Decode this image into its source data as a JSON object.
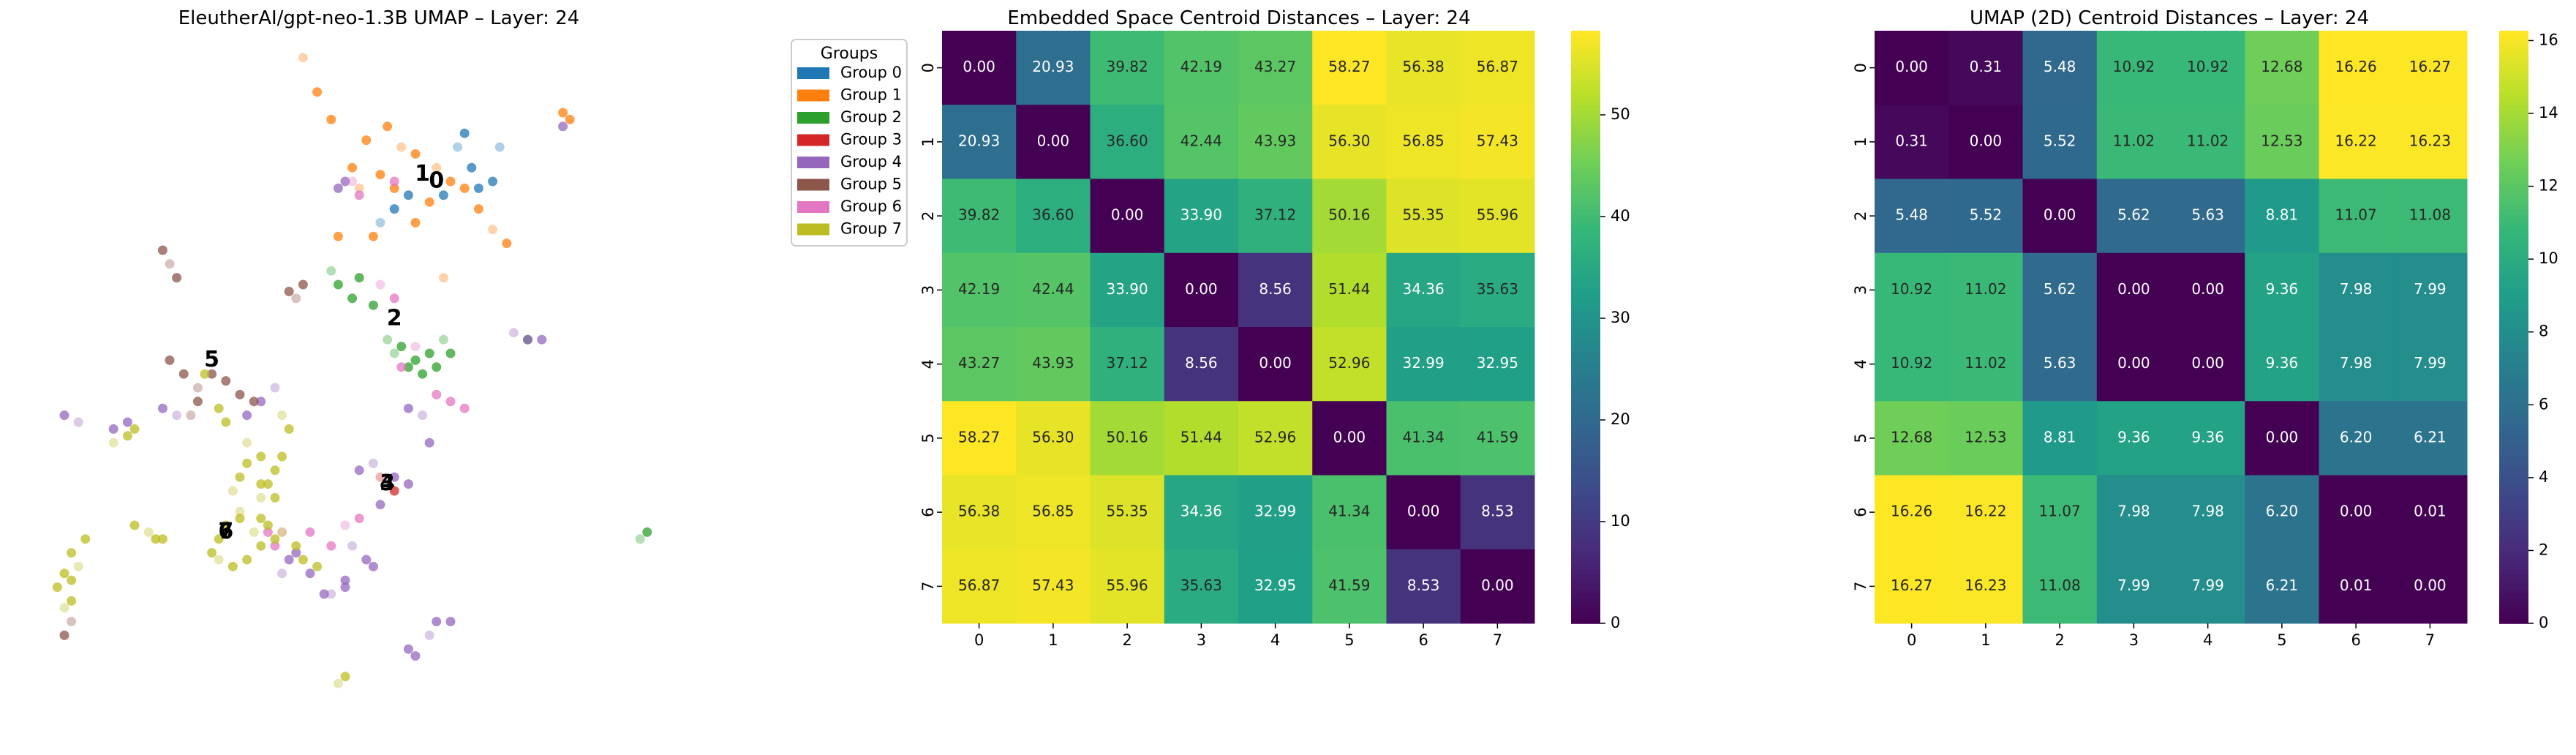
{
  "chart_data": [
    {
      "type": "scatter",
      "title": "EleutherAI/gpt-neo-1.3B UMAP – Layer: 24",
      "xlabel": "",
      "ylabel": "",
      "axes_visible": false,
      "legend": {
        "title": "Groups",
        "placement": "outside-right",
        "entries": [
          {
            "label": "Group 0",
            "color": "#1f77b4"
          },
          {
            "label": "Group 1",
            "color": "#ff7f0e"
          },
          {
            "label": "Group 2",
            "color": "#2ca02c"
          },
          {
            "label": "Group 3",
            "color": "#d62728"
          },
          {
            "label": "Group 4",
            "color": "#9467bd"
          },
          {
            "label": "Group 5",
            "color": "#8c564b"
          },
          {
            "label": "Group 6",
            "color": "#e377c2"
          },
          {
            "label": "Group 7",
            "color": "#bcbd22"
          }
        ]
      },
      "centroid_labels": [
        {
          "label": "1",
          "x": 0.56,
          "y": 0.81
        },
        {
          "label": "0",
          "x": 0.58,
          "y": 0.8
        },
        {
          "label": "2",
          "x": 0.52,
          "y": 0.6
        },
        {
          "label": "5",
          "x": 0.26,
          "y": 0.54
        },
        {
          "label": "3",
          "x": 0.51,
          "y": 0.36
        },
        {
          "label": "4",
          "x": 0.51,
          "y": 0.36
        },
        {
          "label": "6",
          "x": 0.28,
          "y": 0.29
        },
        {
          "label": "7",
          "x": 0.28,
          "y": 0.29
        }
      ],
      "clusters": [
        {
          "group": 0,
          "points": [
            [
              0.61,
              0.85
            ],
            [
              0.62,
              0.87
            ],
            [
              0.63,
              0.82
            ],
            [
              0.64,
              0.79
            ],
            [
              0.5,
              0.74
            ],
            [
              0.52,
              0.76
            ],
            [
              0.59,
              0.78
            ],
            [
              0.66,
              0.8
            ],
            [
              0.67,
              0.85
            ],
            [
              0.54,
              0.78
            ]
          ]
        },
        {
          "group": 1,
          "points": [
            [
              0.39,
              0.98
            ],
            [
              0.41,
              0.93
            ],
            [
              0.43,
              0.89
            ],
            [
              0.46,
              0.82
            ],
            [
              0.47,
              0.79
            ],
            [
              0.5,
              0.81
            ],
            [
              0.52,
              0.79
            ],
            [
              0.55,
              0.84
            ],
            [
              0.58,
              0.82
            ],
            [
              0.6,
              0.8
            ],
            [
              0.62,
              0.79
            ],
            [
              0.64,
              0.76
            ],
            [
              0.66,
              0.73
            ],
            [
              0.68,
              0.71
            ],
            [
              0.48,
              0.86
            ],
            [
              0.51,
              0.88
            ],
            [
              0.53,
              0.85
            ],
            [
              0.57,
              0.77
            ],
            [
              0.55,
              0.74
            ],
            [
              0.49,
              0.72
            ],
            [
              0.59,
              0.66
            ],
            [
              0.76,
              0.9
            ],
            [
              0.77,
              0.89
            ],
            [
              0.44,
              0.72
            ]
          ]
        },
        {
          "group": 2,
          "points": [
            [
              0.43,
              0.67
            ],
            [
              0.44,
              0.65
            ],
            [
              0.46,
              0.63
            ],
            [
              0.49,
              0.62
            ],
            [
              0.51,
              0.57
            ],
            [
              0.53,
              0.56
            ],
            [
              0.55,
              0.54
            ],
            [
              0.57,
              0.55
            ],
            [
              0.59,
              0.57
            ],
            [
              0.6,
              0.55
            ],
            [
              0.56,
              0.52
            ],
            [
              0.54,
              0.53
            ],
            [
              0.52,
              0.55
            ],
            [
              0.58,
              0.53
            ],
            [
              0.47,
              0.66
            ],
            [
              0.71,
              0.57
            ],
            [
              0.87,
              0.28
            ],
            [
              0.88,
              0.29
            ]
          ]
        },
        {
          "group": 3,
          "points": [
            [
              0.5,
              0.37
            ],
            [
              0.52,
              0.35
            ]
          ]
        },
        {
          "group": 4,
          "points": [
            [
              0.69,
              0.58
            ],
            [
              0.71,
              0.57
            ],
            [
              0.73,
              0.57
            ],
            [
              0.47,
              0.38
            ],
            [
              0.49,
              0.39
            ],
            [
              0.52,
              0.37
            ],
            [
              0.54,
              0.36
            ],
            [
              0.5,
              0.33
            ],
            [
              0.46,
              0.27
            ],
            [
              0.48,
              0.25
            ],
            [
              0.49,
              0.24
            ],
            [
              0.45,
              0.22
            ],
            [
              0.43,
              0.2
            ],
            [
              0.42,
              0.2
            ],
            [
              0.4,
              0.23
            ],
            [
              0.38,
              0.26
            ],
            [
              0.36,
              0.23
            ],
            [
              0.37,
              0.25
            ],
            [
              0.45,
              0.21
            ],
            [
              0.55,
              0.11
            ],
            [
              0.57,
              0.14
            ],
            [
              0.58,
              0.16
            ],
            [
              0.6,
              0.16
            ],
            [
              0.54,
              0.12
            ],
            [
              0.35,
              0.5
            ],
            [
              0.33,
              0.48
            ],
            [
              0.31,
              0.46
            ],
            [
              0.05,
              0.46
            ],
            [
              0.07,
              0.45
            ],
            [
              0.12,
              0.44
            ],
            [
              0.14,
              0.45
            ],
            [
              0.19,
              0.47
            ],
            [
              0.21,
              0.46
            ],
            [
              0.76,
              0.88
            ],
            [
              0.44,
              0.79
            ],
            [
              0.45,
              0.8
            ],
            [
              0.56,
              0.46
            ],
            [
              0.57,
              0.42
            ],
            [
              0.54,
              0.47
            ]
          ]
        },
        {
          "group": 5,
          "points": [
            [
              0.38,
              0.63
            ],
            [
              0.39,
              0.65
            ],
            [
              0.37,
              0.64
            ],
            [
              0.19,
              0.7
            ],
            [
              0.2,
              0.68
            ],
            [
              0.21,
              0.66
            ],
            [
              0.2,
              0.54
            ],
            [
              0.22,
              0.52
            ],
            [
              0.24,
              0.5
            ],
            [
              0.26,
              0.52
            ],
            [
              0.28,
              0.51
            ],
            [
              0.3,
              0.49
            ],
            [
              0.23,
              0.46
            ],
            [
              0.24,
              0.48
            ],
            [
              0.32,
              0.48
            ],
            [
              0.05,
              0.14
            ],
            [
              0.06,
              0.16
            ]
          ]
        },
        {
          "group": 6,
          "points": [
            [
              0.45,
              0.3
            ],
            [
              0.43,
              0.27
            ],
            [
              0.47,
              0.31
            ],
            [
              0.4,
              0.29
            ],
            [
              0.36,
              0.29
            ],
            [
              0.34,
              0.29
            ],
            [
              0.35,
              0.27
            ],
            [
              0.53,
              0.53
            ],
            [
              0.55,
              0.56
            ],
            [
              0.58,
              0.49
            ],
            [
              0.6,
              0.48
            ],
            [
              0.62,
              0.47
            ],
            [
              0.46,
              0.8
            ],
            [
              0.47,
              0.78
            ],
            [
              0.52,
              0.8
            ],
            [
              0.52,
              0.63
            ],
            [
              0.5,
              0.65
            ]
          ]
        },
        {
          "group": 7,
          "points": [
            [
              0.05,
              0.18
            ],
            [
              0.04,
              0.21
            ],
            [
              0.06,
              0.22
            ],
            [
              0.05,
              0.23
            ],
            [
              0.07,
              0.24
            ],
            [
              0.06,
              0.26
            ],
            [
              0.08,
              0.28
            ],
            [
              0.06,
              0.19
            ],
            [
              0.12,
              0.42
            ],
            [
              0.14,
              0.43
            ],
            [
              0.15,
              0.44
            ],
            [
              0.15,
              0.3
            ],
            [
              0.17,
              0.29
            ],
            [
              0.18,
              0.28
            ],
            [
              0.19,
              0.28
            ],
            [
              0.26,
              0.26
            ],
            [
              0.27,
              0.25
            ],
            [
              0.29,
              0.24
            ],
            [
              0.31,
              0.25
            ],
            [
              0.33,
              0.27
            ],
            [
              0.32,
              0.29
            ],
            [
              0.3,
              0.31
            ],
            [
              0.28,
              0.3
            ],
            [
              0.27,
              0.28
            ],
            [
              0.3,
              0.32
            ],
            [
              0.33,
              0.31
            ],
            [
              0.34,
              0.3
            ],
            [
              0.35,
              0.28
            ],
            [
              0.36,
              0.29
            ],
            [
              0.39,
              0.25
            ],
            [
              0.41,
              0.24
            ],
            [
              0.38,
              0.27
            ],
            [
              0.29,
              0.35
            ],
            [
              0.3,
              0.37
            ],
            [
              0.31,
              0.39
            ],
            [
              0.33,
              0.4
            ],
            [
              0.31,
              0.42
            ],
            [
              0.33,
              0.36
            ],
            [
              0.34,
              0.36
            ],
            [
              0.35,
              0.38
            ],
            [
              0.36,
              0.46
            ],
            [
              0.37,
              0.44
            ],
            [
              0.36,
              0.4
            ],
            [
              0.35,
              0.34
            ],
            [
              0.33,
              0.34
            ],
            [
              0.25,
              0.52
            ],
            [
              0.27,
              0.47
            ],
            [
              0.28,
              0.45
            ],
            [
              0.44,
              0.07
            ],
            [
              0.45,
              0.08
            ]
          ]
        }
      ]
    },
    {
      "type": "heatmap",
      "title": "Embedded Space Centroid Distances – Layer: 24",
      "xlabel": "",
      "ylabel": "",
      "colormap": "viridis",
      "vmin": 0,
      "vmax": 58.27,
      "x_ticks": [
        "0",
        "1",
        "2",
        "3",
        "4",
        "5",
        "6",
        "7"
      ],
      "y_ticks": [
        "0",
        "1",
        "2",
        "3",
        "4",
        "5",
        "6",
        "7"
      ],
      "colorbar_ticks": [
        "0",
        "10",
        "20",
        "30",
        "40",
        "50"
      ],
      "colorbar_tick_values": [
        0,
        10,
        20,
        30,
        40,
        50
      ],
      "matrix": [
        [
          0.0,
          20.93,
          39.82,
          42.19,
          43.27,
          58.27,
          56.38,
          56.87
        ],
        [
          20.93,
          0.0,
          36.6,
          42.44,
          43.93,
          56.3,
          56.85,
          57.43
        ],
        [
          39.82,
          36.6,
          0.0,
          33.9,
          37.12,
          50.16,
          55.35,
          55.96
        ],
        [
          42.19,
          42.44,
          33.9,
          0.0,
          8.56,
          51.44,
          34.36,
          35.63
        ],
        [
          43.27,
          43.93,
          37.12,
          8.56,
          0.0,
          52.96,
          32.99,
          32.95
        ],
        [
          58.27,
          56.3,
          50.16,
          51.44,
          52.96,
          0.0,
          41.34,
          41.59
        ],
        [
          56.38,
          56.85,
          55.35,
          34.36,
          32.99,
          41.34,
          0.0,
          8.53
        ],
        [
          56.87,
          57.43,
          55.96,
          35.63,
          32.95,
          41.59,
          8.53,
          0.0
        ]
      ]
    },
    {
      "type": "heatmap",
      "title": "UMAP (2D) Centroid Distances – Layer: 24",
      "xlabel": "",
      "ylabel": "",
      "colormap": "viridis",
      "vmin": 0,
      "vmax": 16.27,
      "x_ticks": [
        "0",
        "1",
        "2",
        "3",
        "4",
        "5",
        "6",
        "7"
      ],
      "y_ticks": [
        "0",
        "1",
        "2",
        "3",
        "4",
        "5",
        "6",
        "7"
      ],
      "colorbar_ticks": [
        "0",
        "2",
        "4",
        "6",
        "8",
        "10",
        "12",
        "14",
        "16"
      ],
      "colorbar_tick_values": [
        0,
        2,
        4,
        6,
        8,
        10,
        12,
        14,
        16
      ],
      "matrix": [
        [
          0.0,
          0.31,
          5.48,
          10.92,
          10.92,
          12.68,
          16.26,
          16.27
        ],
        [
          0.31,
          0.0,
          5.52,
          11.02,
          11.02,
          12.53,
          16.22,
          16.23
        ],
        [
          5.48,
          5.52,
          0.0,
          5.62,
          5.63,
          8.81,
          11.07,
          11.08
        ],
        [
          10.92,
          11.02,
          5.62,
          0.0,
          0.0,
          9.36,
          7.98,
          7.99
        ],
        [
          10.92,
          11.02,
          5.63,
          0.0,
          0.0,
          9.36,
          7.98,
          7.99
        ],
        [
          12.68,
          12.53,
          8.81,
          9.36,
          9.36,
          0.0,
          6.2,
          6.21
        ],
        [
          16.26,
          16.22,
          11.07,
          7.98,
          7.98,
          6.2,
          0.0,
          0.01
        ],
        [
          16.27,
          16.23,
          11.08,
          7.99,
          7.99,
          6.21,
          0.01,
          0.0
        ]
      ]
    }
  ]
}
